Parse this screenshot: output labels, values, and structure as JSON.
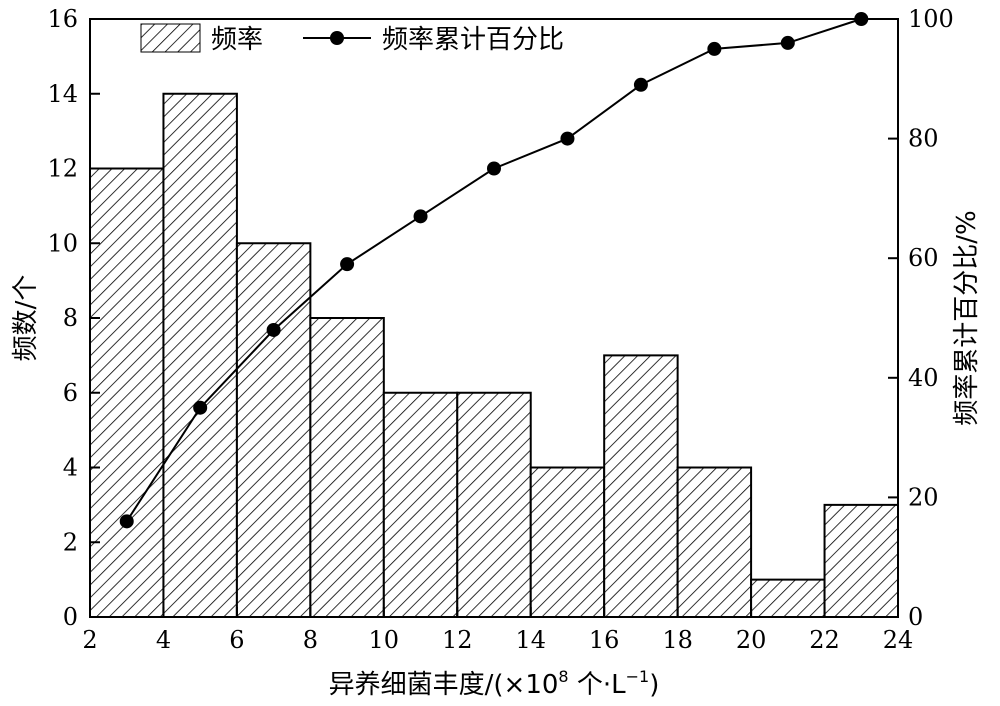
{
  "chart_data": {
    "type": "bar+line",
    "x_axis": {
      "label_main": "异养细菌丰度/(×10",
      "label_exp": "8",
      "label_unit": " 个·L",
      "label_unit_exp": "−1",
      "label_close": ")",
      "range": [
        2,
        24
      ],
      "ticks": [
        "2",
        "4",
        "6",
        "8",
        "10",
        "12",
        "14",
        "16",
        "18",
        "20",
        "22",
        "24"
      ]
    },
    "y_left": {
      "label": "频数/个",
      "range": [
        0,
        16
      ],
      "ticks": [
        "0",
        "2",
        "4",
        "6",
        "8",
        "10",
        "12",
        "14",
        "16"
      ]
    },
    "y_right": {
      "label": "频率累计百分比/%",
      "range": [
        0,
        100
      ],
      "ticks": [
        "0",
        "20",
        "40",
        "60",
        "80",
        "100"
      ]
    },
    "series": [
      {
        "name": "频率",
        "type": "bar",
        "bins": [
          [
            2,
            4
          ],
          [
            4,
            6
          ],
          [
            6,
            8
          ],
          [
            8,
            10
          ],
          [
            10,
            12
          ],
          [
            12,
            14
          ],
          [
            14,
            16
          ],
          [
            16,
            18
          ],
          [
            18,
            20
          ],
          [
            20,
            22
          ],
          [
            22,
            24
          ]
        ],
        "values": [
          12,
          14,
          10,
          8,
          6,
          6,
          4,
          7,
          4,
          1,
          3
        ]
      },
      {
        "name": "频率累计百分比",
        "type": "line",
        "axis": "right",
        "x": [
          3,
          5,
          7,
          9,
          11,
          13,
          15,
          17,
          19,
          21,
          23
        ],
        "y": [
          16,
          35,
          48,
          59,
          67,
          75,
          80,
          89,
          95,
          96,
          100
        ]
      }
    ],
    "legend": {
      "placement": "top-left",
      "bar_label": "频率",
      "line_label": "频率累计百分比"
    },
    "grid": false
  }
}
